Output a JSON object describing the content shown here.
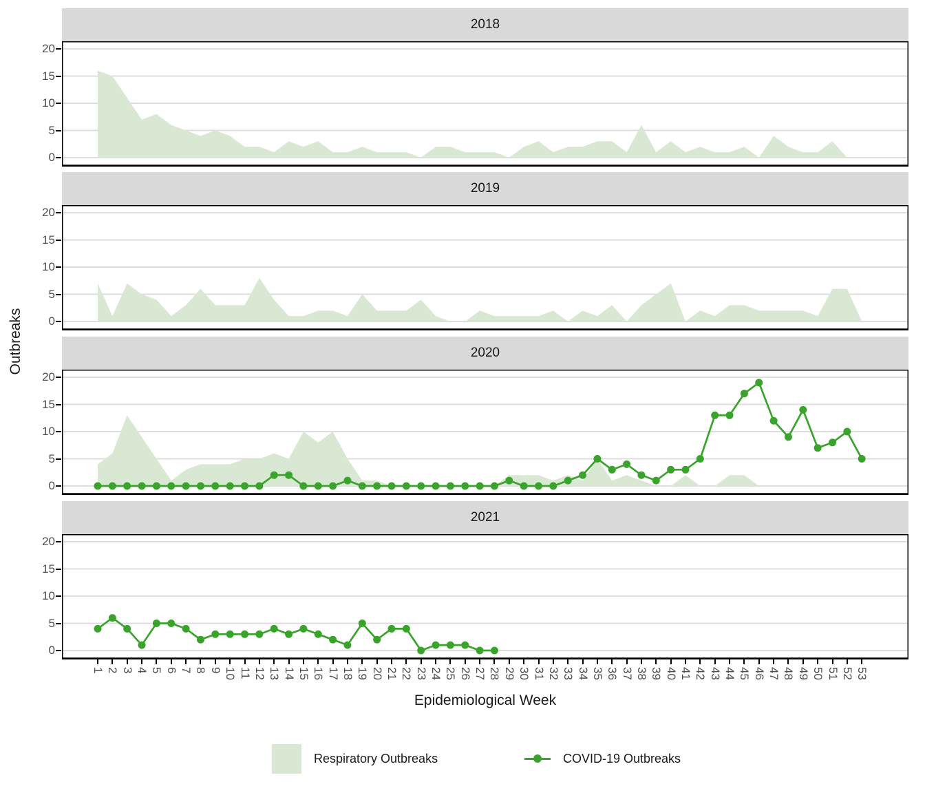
{
  "colors": {
    "respiratory_fill": "#d9e8d2",
    "covid_line": "#3aa32c",
    "strip_bg": "#d9d9d9",
    "grid": "#dadada",
    "axis_text": "#4d4d4d",
    "panel_border": "#000000"
  },
  "legend": {
    "items": [
      {
        "label": "Respiratory Outbreaks",
        "type": "area"
      },
      {
        "label": "COVID-19 Outbreaks",
        "type": "line"
      }
    ]
  },
  "chart_data": {
    "type": "area+line",
    "faceted_by": "year",
    "xlabel": "Epidemiological Week",
    "ylabel": "Outbreaks",
    "x_ticks": [
      1,
      2,
      3,
      4,
      5,
      6,
      7,
      8,
      9,
      10,
      11,
      12,
      13,
      14,
      15,
      16,
      17,
      18,
      19,
      20,
      21,
      22,
      23,
      24,
      25,
      26,
      27,
      28,
      29,
      30,
      31,
      32,
      33,
      34,
      35,
      36,
      37,
      38,
      39,
      40,
      41,
      42,
      43,
      44,
      45,
      46,
      47,
      48,
      49,
      50,
      51,
      52,
      53
    ],
    "y_ticks": [
      0,
      5,
      10,
      15,
      20
    ],
    "ylim": [
      0,
      21.5
    ],
    "grid": "horizontal-only",
    "legend_position": "bottom",
    "facets": [
      {
        "year": "2018",
        "respiratory": [
          16,
          15,
          11,
          7,
          8,
          6,
          5,
          4,
          5,
          4,
          2,
          2,
          1,
          3,
          2,
          3,
          1,
          1,
          2,
          1,
          1,
          1,
          0,
          2,
          2,
          1,
          1,
          1,
          0,
          2,
          3,
          1,
          2,
          2,
          3,
          3,
          1,
          6,
          1,
          3,
          1,
          2,
          1,
          1,
          2,
          0,
          4,
          2,
          1,
          1,
          3,
          0,
          0
        ],
        "covid": null
      },
      {
        "year": "2019",
        "respiratory": [
          7,
          1,
          7,
          5,
          4,
          1,
          3,
          6,
          3,
          3,
          3,
          8,
          4,
          1,
          1,
          2,
          2,
          1,
          5,
          2,
          2,
          2,
          4,
          1,
          0,
          0,
          2,
          1,
          1,
          1,
          1,
          2,
          0,
          2,
          1,
          3,
          0,
          3,
          5,
          7,
          0,
          2,
          1,
          3,
          3,
          2,
          2,
          2,
          2,
          1,
          6,
          6,
          0
        ],
        "covid": null
      },
      {
        "year": "2020",
        "respiratory": [
          4,
          6,
          13,
          9,
          5,
          1,
          3,
          4,
          4,
          4,
          5,
          5,
          6,
          5,
          10,
          8,
          10,
          5,
          1,
          1,
          0,
          0,
          0,
          0,
          0,
          0,
          0,
          0,
          2,
          2,
          2,
          1,
          2,
          1,
          5,
          1,
          2,
          1,
          0,
          0,
          2,
          0,
          0,
          2,
          2,
          0,
          0,
          0,
          0,
          0,
          0,
          0,
          0
        ],
        "covid": [
          0,
          0,
          0,
          0,
          0,
          0,
          0,
          0,
          0,
          0,
          0,
          0,
          2,
          2,
          0,
          0,
          0,
          1,
          0,
          0,
          0,
          0,
          0,
          0,
          0,
          0,
          0,
          0,
          1,
          0,
          0,
          0,
          1,
          2,
          5,
          3,
          4,
          2,
          1,
          3,
          3,
          5,
          13,
          13,
          17,
          19,
          12,
          9,
          14,
          7,
          8,
          10,
          5
        ]
      },
      {
        "year": "2021",
        "respiratory": null,
        "covid": [
          4,
          6,
          4,
          1,
          5,
          5,
          4,
          2,
          3,
          3,
          3,
          3,
          4,
          3,
          4,
          3,
          2,
          1,
          5,
          2,
          4,
          4,
          0,
          1,
          1,
          1,
          0,
          0,
          null,
          null,
          null,
          null,
          null,
          null,
          null,
          null,
          null,
          null,
          null,
          null,
          null,
          null,
          null,
          null,
          null,
          null,
          null,
          null,
          null,
          null,
          null,
          null,
          null
        ]
      }
    ]
  }
}
